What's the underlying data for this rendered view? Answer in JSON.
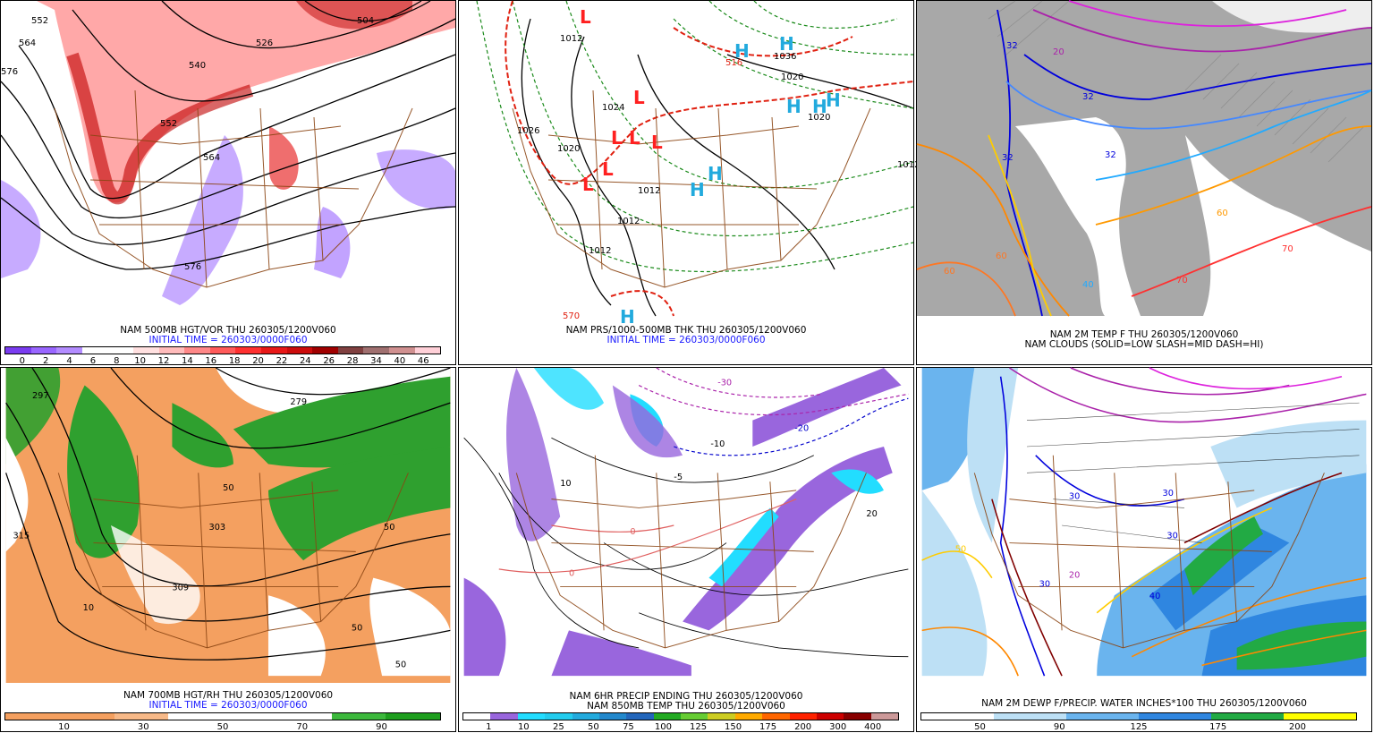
{
  "panels": [
    {
      "caption1": "NAM 500MB HGT/VOR THU 260305/1200V060",
      "caption2": "INITIAL TIME = 260303/0000F060",
      "colorbar": [
        "#7a3cf0",
        "#9966ff",
        "#b38cff",
        "#ffffff",
        "#ffffff",
        "#ffe0e0",
        "#ffbbbb",
        "#ff8888",
        "#ff5a5a",
        "#ff3030",
        "#e81818",
        "#cc0c0c",
        "#a00000",
        "#804040",
        "#a07070",
        "#d09090",
        "#ffd0d8"
      ],
      "ticks": [
        "0",
        "2",
        "4",
        "6",
        "8",
        "10",
        "12",
        "14",
        "16",
        "18",
        "20",
        "22",
        "24",
        "26",
        "28",
        "34",
        "40",
        "46"
      ],
      "labels": [
        "552",
        "564",
        "576",
        "552",
        "526",
        "540",
        "564",
        "576",
        "504"
      ]
    },
    {
      "caption1": "NAM PRS/1000-500MB THK THU 260305/1200V060",
      "caption2": "INITIAL TIME = 260303/0000F060",
      "labels": [
        "1012",
        "1026",
        "1020",
        "1012",
        "1012",
        "1012",
        "1024",
        "1036",
        "1020",
        "1020",
        "570",
        "1012",
        "516"
      ]
    },
    {
      "caption1": "NAM 2M TEMP F THU 260305/1200V060",
      "caption2": "NAM CLOUDS (SOLID=LOW SLASH=MID DASH=HI)",
      "labels": [
        "20",
        "32",
        "32",
        "32",
        "32",
        "60",
        "60",
        "70",
        "70",
        "40",
        "60"
      ]
    },
    {
      "caption1": "NAM 700MB HGT/RH THU 260305/1200V060",
      "caption2": "INITIAL TIME = 260303/0000F060",
      "colorbar": [
        "#f4a060",
        "#f4a060",
        "#f7b988",
        "#ffffff",
        "#ffffff",
        "#ffffff",
        "#3cb83c",
        "#1e9e1e"
      ],
      "ticks": [
        "10",
        "30",
        "50",
        "70",
        "90"
      ],
      "labels": [
        "297",
        "303",
        "309",
        "315",
        "279",
        "10",
        "50",
        "50",
        "50",
        "50"
      ]
    },
    {
      "caption1": "NAM 6HR PRECIP ENDING THU 260305/1200V060",
      "caption2": "NAM 850MB TEMP THU 260305/1200V060",
      "colorbar": [
        "#ffffff",
        "#9966dd",
        "#22ddff",
        "#22ccee",
        "#22aadd",
        "#2288cc",
        "#2266bb",
        "#22aa22",
        "#66cc33",
        "#cccc22",
        "#ffaa00",
        "#ff6600",
        "#ff2200",
        "#cc0000",
        "#880000",
        "#cc9999"
      ],
      "ticks": [
        "1",
        "10",
        "25",
        "50",
        "75",
        "100",
        "125",
        "150",
        "175",
        "200",
        "300",
        "400"
      ],
      "labels": [
        "-10",
        "-20",
        "-30",
        "0",
        "0",
        "10",
        "-5",
        "20"
      ]
    },
    {
      "caption1": "NAM 2M DEWP F/PRECIP. WATER INCHES*100 THU 260305/1200V060",
      "caption2": "",
      "colorbar": [
        "#ffffff",
        "#ffffff",
        "#bde0f5",
        "#bde0f5",
        "#6ab4ee",
        "#6ab4ee",
        "#2f86e0",
        "#2f86e0",
        "#22aa44",
        "#22aa44",
        "#ffff00",
        "#ffff00"
      ],
      "ticks": [
        "50",
        "90",
        "125",
        "175",
        "200"
      ],
      "labels": [
        "30",
        "30",
        "40",
        "50",
        "30",
        "20",
        "30"
      ]
    }
  ]
}
